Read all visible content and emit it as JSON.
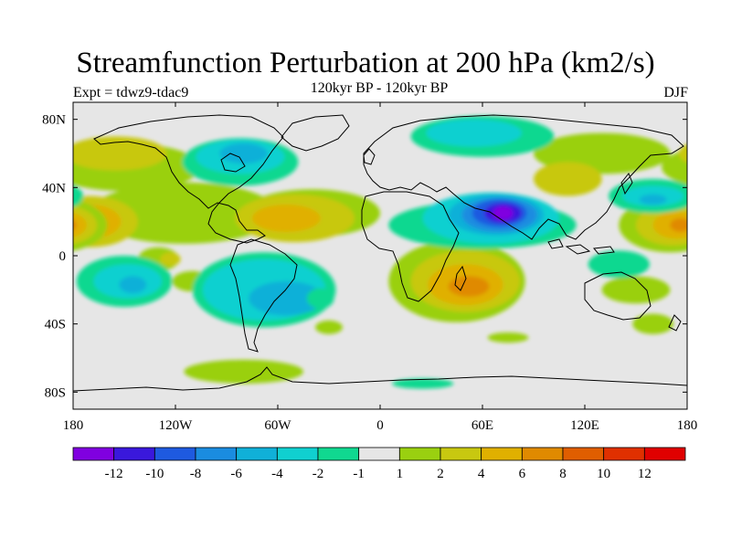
{
  "title": "Streamfunction Perturbation at 200 hPa (km2/s)",
  "left_subtitle": "Expt = tdwz9-tdac9",
  "center_subtitle": "120kyr BP - 120kyr BP",
  "right_subtitle": "DJF",
  "chart_data": {
    "type": "heatmap",
    "variable": "Streamfunction Perturbation at 200 hPa",
    "units": "km2/s",
    "projection": "cylindrical equidistant, global",
    "x_ticks": [
      "180",
      "120W",
      "60W",
      "0",
      "60E",
      "120E",
      "180"
    ],
    "y_ticks": [
      "80N",
      "40N",
      "0",
      "40S",
      "80S"
    ],
    "xlim": [
      -180,
      180
    ],
    "ylim": [
      -90,
      90
    ],
    "legend": {
      "levels": [
        "-12",
        "-10",
        "-8",
        "-6",
        "-4",
        "-2",
        "-1",
        "1",
        "2",
        "4",
        "6",
        "8",
        "10",
        "12"
      ],
      "colors": [
        "#8000e0",
        "#3a18dc",
        "#1e5ae0",
        "#1a8ce0",
        "#10b0d8",
        "#10d0d0",
        "#10d890",
        "#e6e6e6",
        "#9ad010",
        "#c8c810",
        "#e0b000",
        "#e08a00",
        "#e05e00",
        "#e03000",
        "#e00000"
      ]
    },
    "features": [
      {
        "name": "strong-low-asia",
        "lon": 70,
        "lat": 25,
        "level": "-12"
      },
      {
        "name": "high-central-pacific",
        "lon": -170,
        "lat": 20,
        "level": "8"
      },
      {
        "name": "high-west-pacific",
        "lon": 170,
        "lat": 20,
        "level": "6"
      },
      {
        "name": "high-southern-africa",
        "lon": 50,
        "lat": -15,
        "level": "6"
      },
      {
        "name": "high-atlantic-subtropics",
        "lon": -55,
        "lat": 25,
        "level": "4"
      },
      {
        "name": "low-south-america",
        "lon": -60,
        "lat": -25,
        "level": "-4"
      },
      {
        "name": "low-east-pacific-south",
        "lon": -145,
        "lat": -15,
        "level": "-4"
      },
      {
        "name": "low-north-america",
        "lon": -80,
        "lat": 55,
        "level": "-2"
      },
      {
        "name": "low-siberia",
        "lon": 60,
        "lat": 70,
        "level": "-2"
      },
      {
        "name": "low-north-pacific",
        "lon": 160,
        "lat": 35,
        "level": "-4"
      }
    ]
  }
}
